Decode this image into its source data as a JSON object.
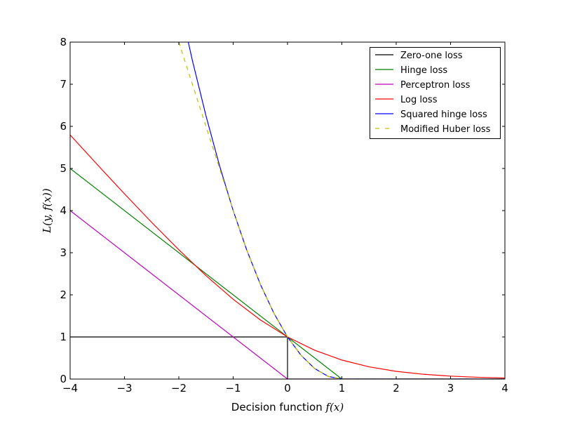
{
  "chart_data": {
    "type": "line",
    "title": "",
    "xlabel": "Decision function f(x)",
    "xlabel_prefix": "Decision function ",
    "xlabel_math": "f(x)",
    "ylabel": "L(y, f(x))",
    "xlim": [
      -4,
      4
    ],
    "ylim": [
      0,
      8
    ],
    "grid": false,
    "legend_position": "top-right",
    "xticks": [
      "−4",
      "−3",
      "−2",
      "−1",
      "0",
      "1",
      "2",
      "3",
      "4"
    ],
    "yticks": [
      "0",
      "1",
      "2",
      "3",
      "4",
      "5",
      "6",
      "7",
      "8"
    ],
    "series": [
      {
        "name": "Zero-one loss",
        "color": "#000000",
        "dash": false,
        "x": [
          -4,
          0,
          0,
          4
        ],
        "y": [
          1,
          1,
          0,
          0
        ]
      },
      {
        "name": "Hinge loss",
        "color": "#008000",
        "dash": false,
        "x": [
          -4,
          1,
          4
        ],
        "y": [
          5,
          0,
          0
        ]
      },
      {
        "name": "Perceptron loss",
        "color": "#bf00bf",
        "dash": false,
        "x": [
          -4,
          0,
          4
        ],
        "y": [
          4,
          0,
          0
        ]
      },
      {
        "name": "Log loss",
        "color": "#ff0000",
        "dash": false,
        "x": [
          -4,
          -3.5,
          -3,
          -2.5,
          -2,
          -1.5,
          -1,
          -0.5,
          0,
          0.5,
          1,
          1.5,
          2,
          2.5,
          3,
          3.5,
          4
        ],
        "y": [
          5.796,
          5.092,
          4.398,
          3.721,
          3.069,
          2.455,
          1.895,
          1.405,
          1,
          0.684,
          0.452,
          0.291,
          0.183,
          0.114,
          0.07,
          0.043,
          0.026
        ]
      },
      {
        "name": "Squared hinge loss",
        "color": "#0000ff",
        "dash": false,
        "x": [
          -2,
          -1.75,
          -1.5,
          -1.25,
          -1,
          -0.75,
          -0.5,
          -0.25,
          0,
          0.25,
          0.5,
          0.75,
          1,
          4
        ],
        "y": [
          9,
          7.5625,
          6.25,
          5.0625,
          4,
          3.0625,
          2.25,
          1.5625,
          1,
          0.5625,
          0.25,
          0.0625,
          0,
          0
        ]
      },
      {
        "name": "Modified Huber loss",
        "color": "#bfbf00",
        "dash": true,
        "x": [
          -4,
          -1,
          -0.75,
          -0.5,
          -0.25,
          0,
          0.25,
          0.5,
          0.75,
          1,
          4
        ],
        "y": [
          16,
          4,
          3.0625,
          2.25,
          1.5625,
          1,
          0.5625,
          0.25,
          0.0625,
          0,
          0
        ]
      }
    ]
  }
}
